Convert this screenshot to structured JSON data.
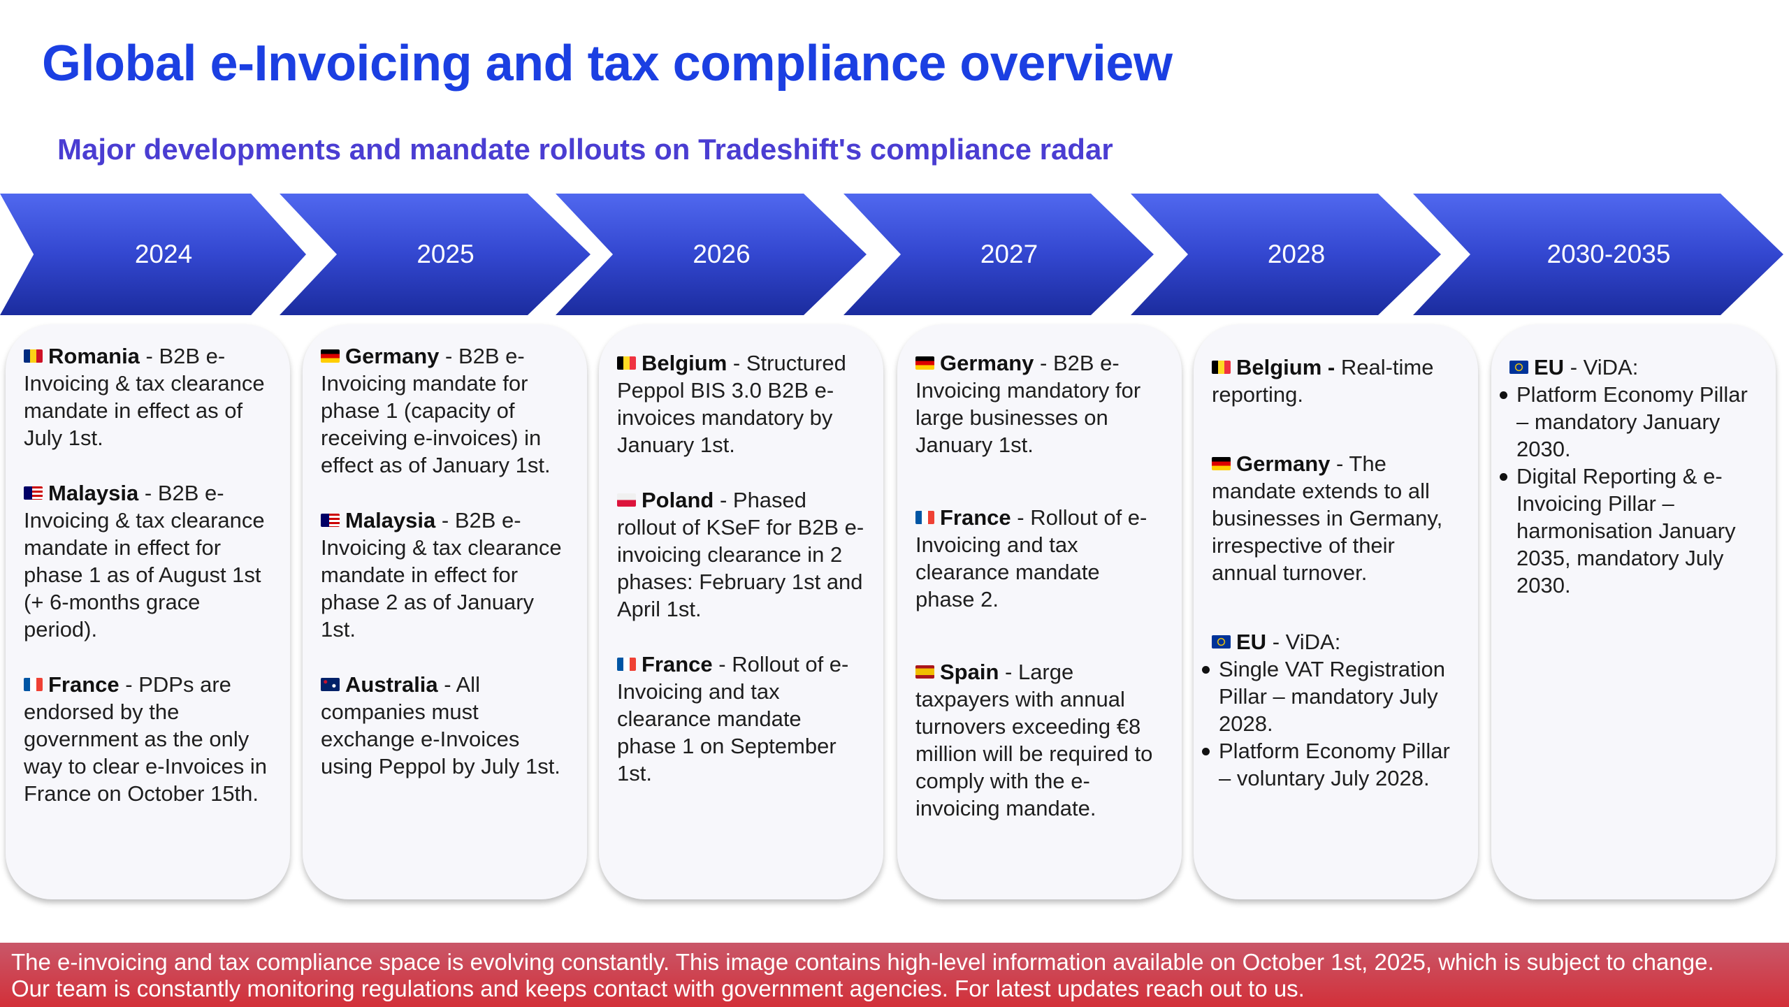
{
  "title": "Global e-Invoicing and tax compliance overview",
  "subtitle": "Major developments and mandate rollouts on Tradeshift's compliance radar",
  "colors": {
    "title": "#1b3fe2",
    "subtitle": "#4a3dd2",
    "arrow_top": "#5068ef",
    "arrow_bottom": "#1b2c9e",
    "footer": "#d23039"
  },
  "columns": [
    {
      "year": "2024",
      "entries": [
        {
          "flag": "romania",
          "country": "Romania",
          "text": " - B2B e-Invoicing & tax clearance mandate in effect as of July 1st."
        },
        {
          "flag": "malaysia",
          "country": "Malaysia",
          "text": " - B2B e-Invoicing & tax clearance mandate in effect for phase 1 as of August 1st (+ 6-months grace period)."
        },
        {
          "flag": "france",
          "country": "France",
          "text": " - PDPs are endorsed by the government as the only way to clear e-Invoices in France on October 15th."
        }
      ]
    },
    {
      "year": "2025",
      "entries": [
        {
          "flag": "germany",
          "country": "Germany",
          "text": " - B2B e-Invoicing mandate for phase 1 (capacity of receiving e-invoices) in effect as of January 1st."
        },
        {
          "flag": "malaysia",
          "country": "Malaysia",
          "text": " - B2B e-Invoicing & tax clearance mandate in effect for phase 2 as of January 1st."
        },
        {
          "flag": "australia",
          "country": "Australia",
          "text": " - All companies must exchange e-Invoices using Peppol by July 1st."
        }
      ]
    },
    {
      "year": "2026",
      "entries": [
        {
          "flag": "belgium",
          "country": "Belgium",
          "text": " - Structured Peppol BIS 3.0 B2B e-invoices mandatory by January 1st."
        },
        {
          "flag": "poland",
          "country": "Poland",
          "text": " - Phased rollout of KSeF for B2B e-invoicing clearance in 2 phases: February 1st and April 1st."
        },
        {
          "flag": "france",
          "country": "France",
          "text": " - Rollout of e-Invoicing and tax clearance mandate phase 1 on September 1st."
        }
      ]
    },
    {
      "year": "2027",
      "entries": [
        {
          "flag": "germany",
          "country": "Germany",
          "text": " - B2B e-Invoicing mandatory for large businesses on January 1st."
        },
        {
          "flag": "france",
          "country": "France",
          "text": " - Rollout of e-Invoicing and tax clearance mandate phase 2."
        },
        {
          "flag": "spain",
          "country": "Spain",
          "text": " - Large taxpayers with annual turnovers exceeding €8 million will be required to comply with the e-invoicing mandate."
        }
      ]
    },
    {
      "year": "2028",
      "entries": [
        {
          "flag": "belgium",
          "country": "Belgium -",
          "text": " Real-time reporting."
        },
        {
          "flag": "germany",
          "country": "Germany",
          "text": " - The mandate extends to all businesses in Germany, irrespective of their annual turnover."
        },
        {
          "flag": "eu",
          "country": "EU",
          "text": " - ViDA:",
          "bullets": [
            "Single VAT Registration Pillar – mandatory July 2028.",
            "Platform Economy Pillar – voluntary July 2028."
          ]
        }
      ]
    },
    {
      "year": "2030-2035",
      "entries": [
        {
          "flag": "eu",
          "country": "EU",
          "text": " - ViDA:",
          "bullets": [
            "Platform Economy Pillar – mandatory January 2030.",
            "Digital Reporting & e-Invoicing Pillar – harmonisation January 2035, mandatory July 2030."
          ]
        }
      ]
    }
  ],
  "footer": {
    "line1": "The e-invoicing and tax compliance space is evolving constantly. This image contains high-level information available on October 1st, 2025, which is subject to change.",
    "line2": "Our team is constantly monitoring regulations and keeps contact with government agencies. For latest updates reach out to us."
  }
}
